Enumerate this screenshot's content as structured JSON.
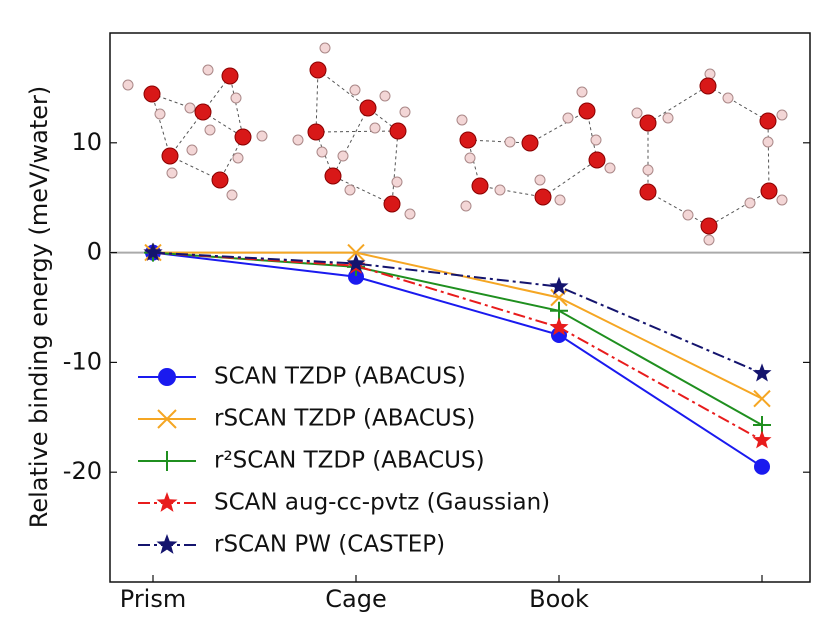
{
  "chart_data": {
    "type": "line",
    "ylabel": "Relative binding energy (meV/water)",
    "categories": [
      "Prism",
      "Cage",
      "Book",
      null
    ],
    "ylim": [
      -30,
      20
    ],
    "yticks": [
      -20,
      -10,
      0,
      10
    ],
    "zero_line": true,
    "legend": "lower left",
    "series": [
      {
        "name": "SCAN TZDP (ABACUS)",
        "color": "#1a1aef",
        "marker": "o",
        "linestyle": "-",
        "values": [
          0,
          -2.2,
          -7.5,
          -19.5
        ]
      },
      {
        "name": "rSCAN TZDP (ABACUS)",
        "color": "#f5a623",
        "marker": "x",
        "linestyle": "-",
        "values": [
          0,
          0,
          -4.1,
          -13.3
        ]
      },
      {
        "name": "r²SCAN TZDP (ABACUS)",
        "color": "#1f8f1f",
        "marker": "+",
        "linestyle": "-",
        "values": [
          0,
          -1.3,
          -5.3,
          -15.7
        ]
      },
      {
        "name": "SCAN aug-cc-pvtz (Gaussian)",
        "color": "#e81c1c",
        "marker": "*",
        "linestyle": "-.",
        "values": [
          0,
          -1.2,
          -6.8,
          -17.1
        ]
      },
      {
        "name": "rSCAN PW (CASTEP)",
        "color": "#14146e",
        "marker": "*",
        "linestyle": "-.",
        "values": [
          0,
          -1,
          -3.1,
          -11
        ]
      }
    ]
  }
}
